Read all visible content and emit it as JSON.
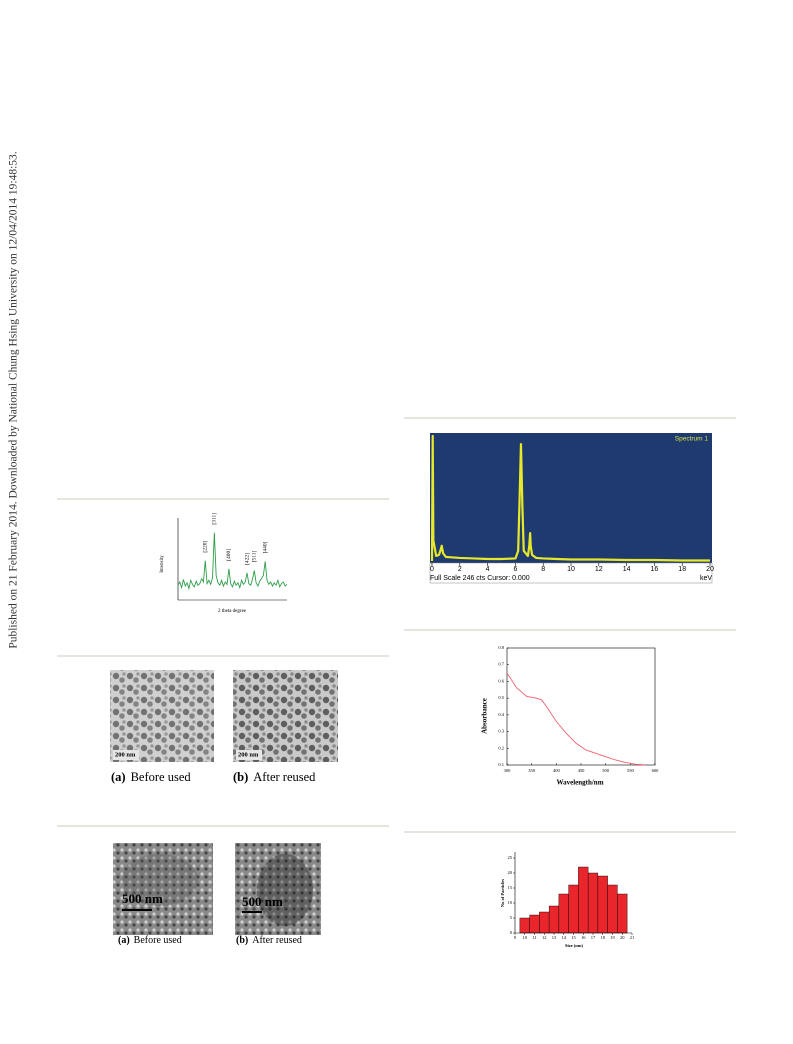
{
  "sidebar": "Published on 21 February 2014. Downloaded by National Chung Hsing University on 12/04/2014 19:48:53.",
  "xrd": {
    "type": "line",
    "ylabel": "Intensity",
    "xlabel": "2 theta degree",
    "color": "#2e9e4a",
    "xlim": [
      15,
      75
    ],
    "ylim": [
      0,
      100
    ],
    "x": [
      15,
      16,
      17,
      18,
      19,
      20,
      21,
      22,
      23,
      24,
      25,
      26,
      27,
      28,
      29,
      30,
      31,
      32,
      33,
      34,
      35,
      36,
      37,
      38,
      39,
      40,
      41,
      42,
      43,
      44,
      45,
      46,
      47,
      48,
      49,
      50,
      51,
      52,
      53,
      54,
      55,
      56,
      57,
      58,
      59,
      60,
      61,
      62,
      63,
      64,
      65,
      66,
      67,
      68,
      69,
      70,
      71,
      72,
      73,
      74,
      75
    ],
    "values": [
      18,
      22,
      15,
      25,
      17,
      21,
      14,
      24,
      19,
      16,
      23,
      18,
      20,
      26,
      22,
      48,
      20,
      24,
      19,
      27,
      82,
      30,
      21,
      18,
      24,
      17,
      22,
      19,
      38,
      20,
      16,
      23,
      18,
      21,
      15,
      24,
      19,
      22,
      33,
      20,
      18,
      25,
      36,
      21,
      17,
      23,
      26,
      30,
      47,
      24,
      19,
      22,
      17,
      21,
      18,
      24,
      16,
      20,
      22,
      17,
      19
    ],
    "peak_labels": [
      "[220]",
      "[311]",
      "[400]",
      "[422]",
      "[511]",
      "[440]"
    ],
    "peak_x": [
      30,
      35,
      43,
      53,
      57,
      63
    ]
  },
  "eds": {
    "type": "line",
    "title": "Spectrum 1",
    "footer": "Full Scale 246 cts Cursor: 0.000",
    "unit": "keV",
    "color": "#e8e82a",
    "background": "#1f3a6e",
    "xlim": [
      0,
      20
    ],
    "ylim": [
      0,
      246
    ],
    "xticks": [
      0,
      2,
      4,
      6,
      8,
      10,
      12,
      14,
      16,
      18,
      20
    ],
    "x": [
      0,
      0.05,
      0.1,
      0.3,
      0.5,
      0.6,
      0.7,
      0.8,
      1,
      2,
      3,
      4,
      5,
      6,
      6.2,
      6.3,
      6.4,
      6.5,
      6.6,
      6.9,
      7.0,
      7.06,
      7.1,
      7.2,
      7.5,
      8,
      9,
      10,
      12,
      14,
      16,
      18,
      20
    ],
    "values": [
      0,
      246,
      40,
      10,
      12,
      20,
      30,
      15,
      8,
      6,
      5,
      4,
      4,
      5,
      20,
      120,
      230,
      110,
      20,
      10,
      30,
      55,
      30,
      12,
      6,
      5,
      4,
      3,
      3,
      2,
      2,
      1,
      1
    ]
  },
  "uv": {
    "type": "line",
    "ylabel": "Absorbance",
    "xlabel": "Wavelength/nm",
    "color": "#f06070",
    "xlim": [
      300,
      600
    ],
    "ylim": [
      0.1,
      0.8
    ],
    "xticks": [
      300,
      350,
      400,
      450,
      500,
      550,
      600
    ],
    "yticks": [
      0.1,
      0.2,
      0.3,
      0.4,
      0.5,
      0.6,
      0.7,
      0.8
    ],
    "x": [
      300,
      320,
      340,
      360,
      370,
      380,
      400,
      420,
      440,
      460,
      480,
      500,
      520,
      540,
      560,
      580
    ],
    "values": [
      0.65,
      0.56,
      0.51,
      0.5,
      0.49,
      0.45,
      0.36,
      0.29,
      0.23,
      0.19,
      0.17,
      0.15,
      0.13,
      0.115,
      0.105,
      0.1
    ]
  },
  "histogram": {
    "type": "histogram",
    "ylabel": "No of Particles",
    "xlabel": "Size (nm)",
    "color": "#e8262c",
    "bins": [
      9.5,
      10.5,
      11.5,
      12.5,
      13.5,
      14.5,
      15.5,
      16.5,
      17.5,
      18.5,
      19.5,
      20.5
    ],
    "values": [
      5,
      6,
      7,
      9,
      13,
      16,
      22,
      20,
      19,
      16,
      13
    ],
    "xlim": [
      9,
      21
    ],
    "ylim": [
      0,
      27
    ],
    "xticks": [
      9,
      10,
      11,
      12,
      13,
      14,
      15,
      16,
      17,
      18,
      19,
      20,
      21
    ],
    "yticks": [
      0,
      5,
      10,
      15,
      20,
      25
    ]
  },
  "tem": {
    "scale_labels": [
      "200 nm",
      "200 nm"
    ],
    "captions": [
      {
        "tag": "(a)",
        "text": "Before used"
      },
      {
        "tag": "(b)",
        "text": "After reused"
      }
    ]
  },
  "sem": {
    "scale_labels": [
      "500 nm",
      "500 nm"
    ],
    "captions": [
      {
        "tag": "(a)",
        "text": "Before used"
      },
      {
        "tag": "(b)",
        "text": "After reused"
      }
    ]
  }
}
